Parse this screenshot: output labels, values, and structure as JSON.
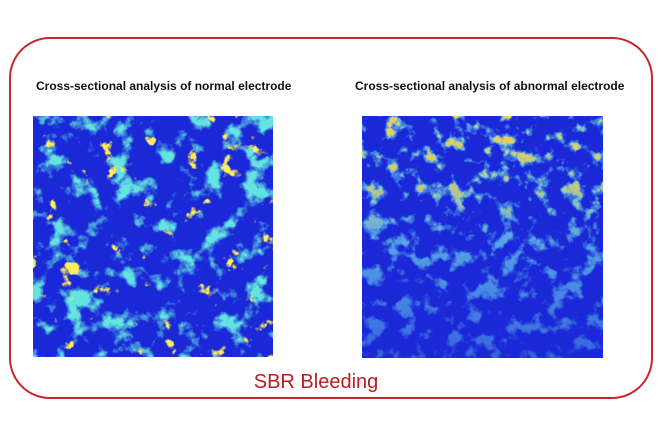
{
  "panels": [
    {
      "title": "Cross-sectional analysis of normal electrode"
    },
    {
      "title": "Cross-sectional analysis of abnormal electrode"
    }
  ],
  "caption": "SBR Bleeding"
}
